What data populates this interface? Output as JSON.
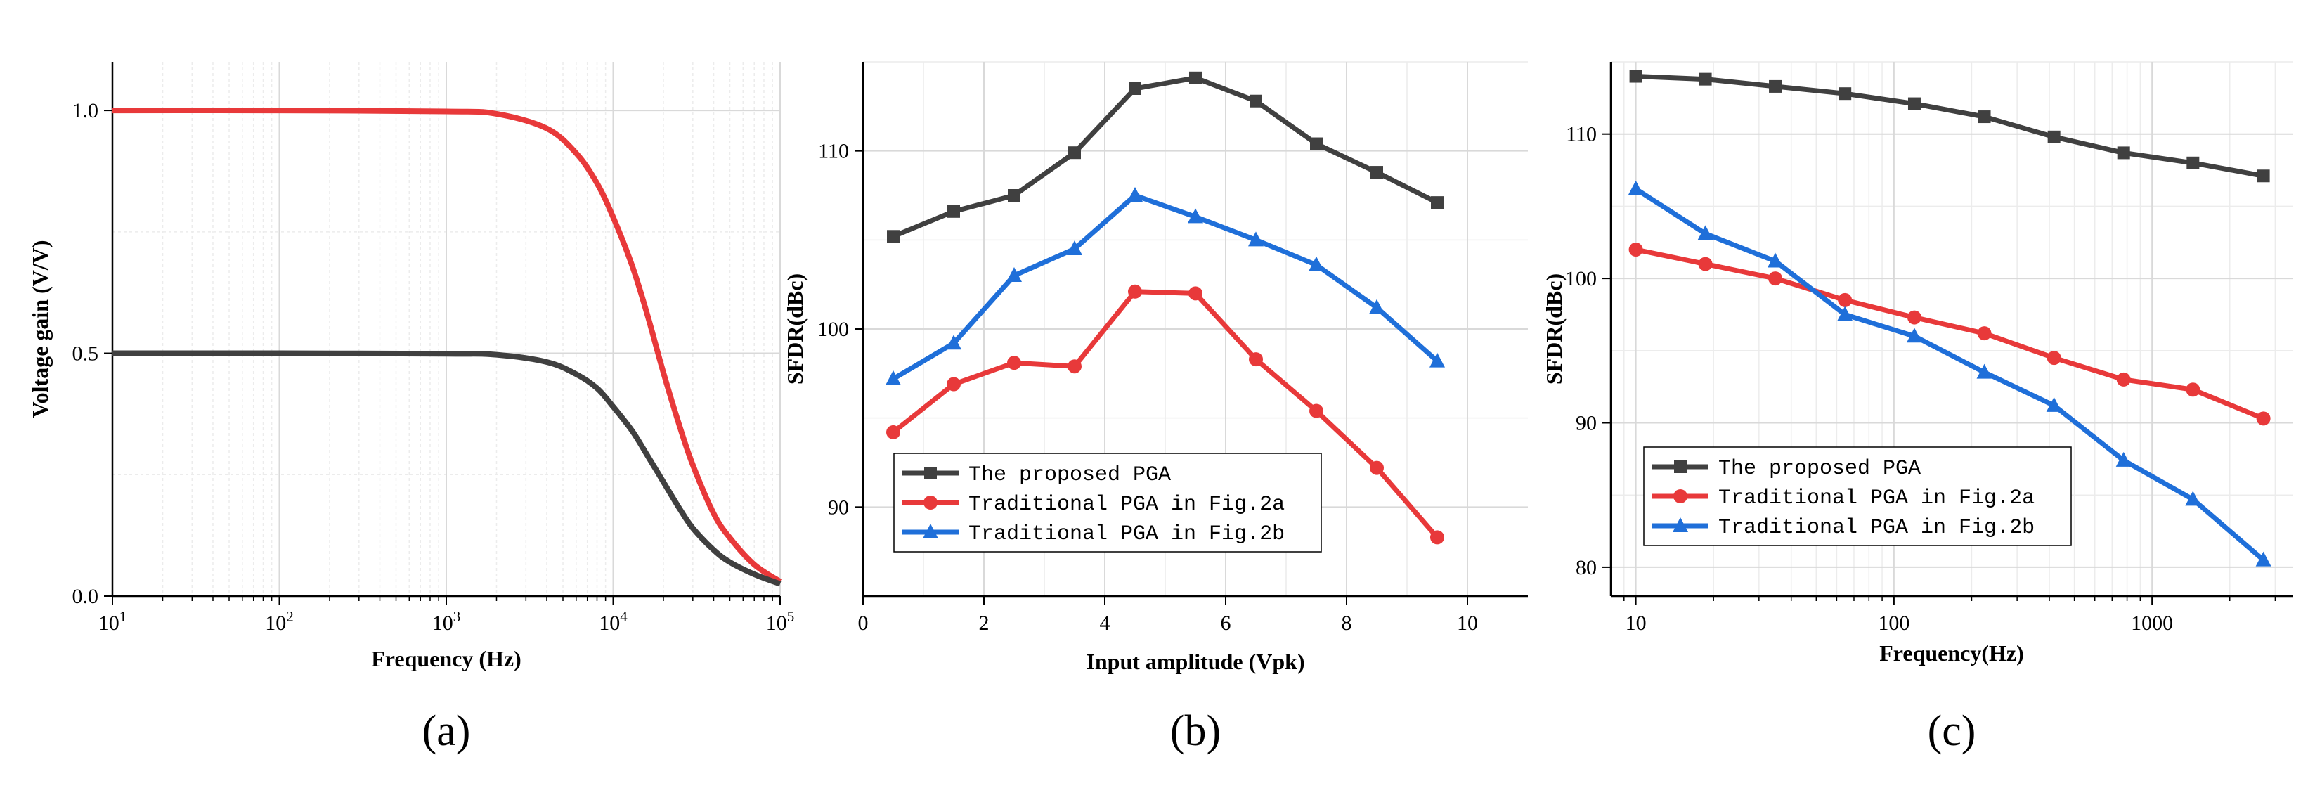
{
  "chart_data": [
    {
      "type": "line",
      "panel_label": "(a)",
      "xscale": "log",
      "xlabel": "Frequency (Hz)",
      "ylabel": "Voltage gain (V/V)",
      "xlim": [
        10,
        100000
      ],
      "ylim": [
        0,
        1.1
      ],
      "x_ticks": [
        {
          "value": 10,
          "base": "10",
          "exp": "1"
        },
        {
          "value": 100,
          "base": "10",
          "exp": "2"
        },
        {
          "value": 1000,
          "base": "10",
          "exp": "3"
        },
        {
          "value": 10000,
          "base": "10",
          "exp": "4"
        },
        {
          "value": 100000,
          "base": "10",
          "exp": "5"
        }
      ],
      "y_ticks": [
        {
          "value": 0,
          "label": "0.0"
        },
        {
          "value": 0.5,
          "label": "0.5"
        },
        {
          "value": 1.0,
          "label": "1.0"
        }
      ],
      "y_minor_ticks": [
        0.25,
        0.75
      ],
      "grid": true,
      "series": [
        {
          "name": "Red curve",
          "color": "#e8393a",
          "x": [
            10,
            100,
            1000,
            2000,
            4000,
            6000,
            8000,
            10000,
            13000,
            16000,
            20000,
            25000,
            30000,
            40000,
            50000,
            70000,
            100000
          ],
          "values": [
            1.0,
            1.0,
            0.998,
            0.993,
            0.963,
            0.912,
            0.85,
            0.78,
            0.68,
            0.58,
            0.46,
            0.35,
            0.27,
            0.17,
            0.12,
            0.065,
            0.03
          ]
        },
        {
          "name": "Dark curve",
          "color": "#404040",
          "x": [
            10,
            100,
            1000,
            2000,
            4000,
            6000,
            8000,
            10000,
            13000,
            16000,
            20000,
            25000,
            30000,
            40000,
            50000,
            70000,
            100000
          ],
          "values": [
            0.5,
            0.5,
            0.499,
            0.497,
            0.482,
            0.457,
            0.428,
            0.39,
            0.34,
            0.29,
            0.235,
            0.18,
            0.14,
            0.095,
            0.07,
            0.045,
            0.025
          ]
        }
      ]
    },
    {
      "type": "line",
      "panel_label": "(b)",
      "xscale": "linear",
      "xlabel": "Input amplitude (Vpk)",
      "ylabel": "SFDR(dBc)",
      "xlim": [
        0,
        11
      ],
      "ylim": [
        85,
        115
      ],
      "x_ticks": [
        {
          "value": 0,
          "label": "0"
        },
        {
          "value": 2,
          "label": "2"
        },
        {
          "value": 4,
          "label": "4"
        },
        {
          "value": 6,
          "label": "6"
        },
        {
          "value": 8,
          "label": "8"
        },
        {
          "value": 10,
          "label": "10"
        }
      ],
      "y_ticks": [
        {
          "value": 90,
          "label": "90"
        },
        {
          "value": 100,
          "label": "100"
        },
        {
          "value": 110,
          "label": "110"
        }
      ],
      "grid": true,
      "legend_position": "bottom-center",
      "x": [
        0.5,
        1.5,
        2.5,
        3.5,
        4.5,
        5.5,
        6.5,
        7.5,
        8.5,
        9.5
      ],
      "series": [
        {
          "name": "The proposed PGA",
          "color": "#404040",
          "marker": "square",
          "values": [
            105.2,
            106.6,
            107.5,
            109.9,
            113.5,
            114.1,
            112.8,
            110.4,
            108.8,
            107.1
          ]
        },
        {
          "name": "Traditional PGA in Fig.2a",
          "color": "#e8393a",
          "marker": "circle",
          "values": [
            94.2,
            96.9,
            98.1,
            97.9,
            102.1,
            102.0,
            98.3,
            95.4,
            92.2,
            88.3
          ]
        },
        {
          "name": "Traditional PGA in Fig.2b",
          "color": "#1f6fd9",
          "marker": "triangle",
          "values": [
            97.2,
            99.2,
            103.0,
            104.5,
            107.5,
            106.3,
            105.0,
            103.6,
            101.2,
            98.2
          ]
        }
      ]
    },
    {
      "type": "line",
      "panel_label": "(c)",
      "xscale": "log",
      "xlabel": "Frequency(Hz)",
      "ylabel": "SFDR(dBc)",
      "xlim": [
        8,
        3500
      ],
      "ylim": [
        78,
        115
      ],
      "x_ticks": [
        {
          "value": 10,
          "label": "10"
        },
        {
          "value": 100,
          "label": "100"
        },
        {
          "value": 1000,
          "label": "1000"
        }
      ],
      "y_ticks": [
        {
          "value": 80,
          "label": "80"
        },
        {
          "value": 90,
          "label": "90"
        },
        {
          "value": 100,
          "label": "100"
        },
        {
          "value": 110,
          "label": "110"
        }
      ],
      "grid": true,
      "legend_position": "bottom-left",
      "x": [
        10,
        18.6,
        34.7,
        64.6,
        120,
        224,
        417,
        776,
        1440,
        2700
      ],
      "series": [
        {
          "name": "The proposed PGA",
          "color": "#404040",
          "marker": "square",
          "values": [
            114.0,
            113.8,
            113.3,
            112.8,
            112.1,
            111.2,
            109.8,
            108.7,
            108.0,
            107.1
          ]
        },
        {
          "name": "Traditional PGA in Fig.2a",
          "color": "#e8393a",
          "marker": "circle",
          "values": [
            102.0,
            101.0,
            100.0,
            98.5,
            97.3,
            96.2,
            94.5,
            93.0,
            92.3,
            90.3
          ]
        },
        {
          "name": "Traditional PGA in Fig.2b",
          "color": "#1f6fd9",
          "marker": "triangle",
          "values": [
            106.2,
            103.1,
            101.2,
            97.5,
            96.0,
            93.5,
            91.2,
            87.4,
            84.7,
            80.5
          ]
        }
      ]
    }
  ]
}
